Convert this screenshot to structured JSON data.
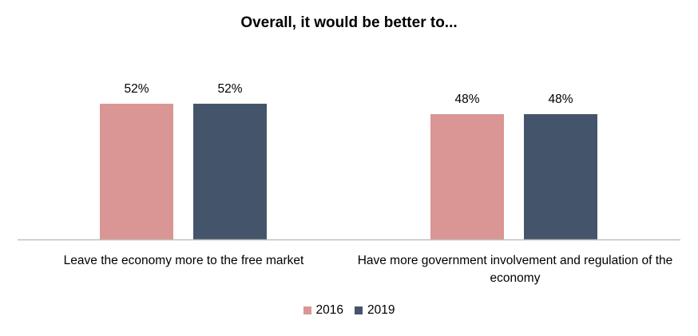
{
  "chart_data": {
    "type": "bar",
    "title": "Overall, it would be better to...",
    "categories": [
      "Leave the economy more to the free market",
      "Have more government involvement and regulation of the economy"
    ],
    "series": [
      {
        "name": "2016",
        "values": [
          52,
          48
        ],
        "labels": [
          "52%",
          "48%"
        ],
        "color": "#d99694"
      },
      {
        "name": "2019",
        "values": [
          52,
          48
        ],
        "labels": [
          "52%",
          "48%"
        ],
        "color": "#44546a"
      }
    ],
    "ylim": [
      0,
      100
    ],
    "grid": false,
    "legend_position": "bottom"
  }
}
